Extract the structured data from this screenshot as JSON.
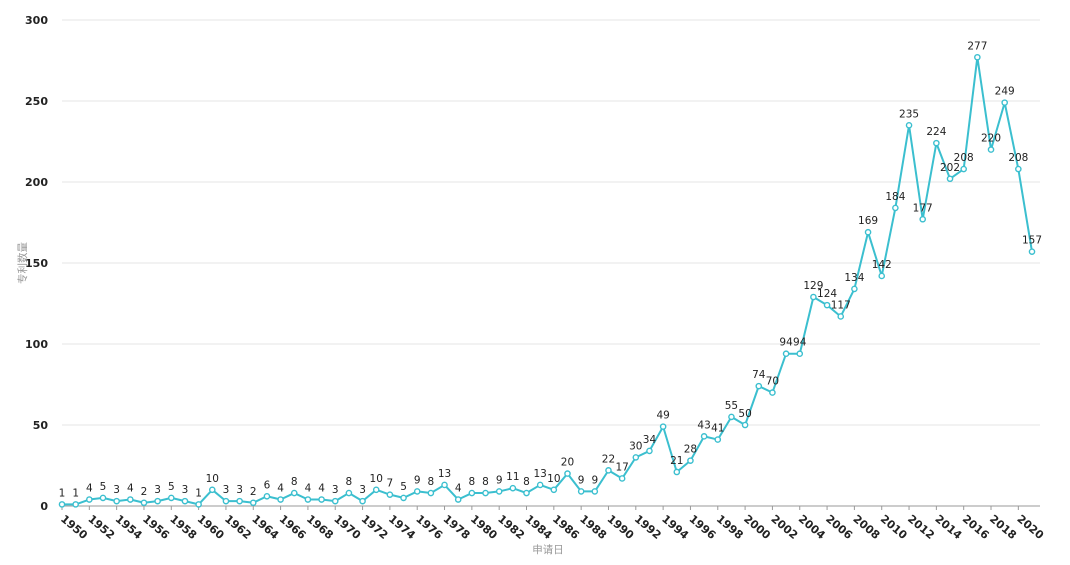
{
  "chart_data": {
    "type": "line",
    "title": "",
    "xlabel": "申请日",
    "ylabel": "专利数量",
    "ylim": [
      0,
      300
    ],
    "yticks": [
      0,
      50,
      100,
      150,
      200,
      250,
      300
    ],
    "grid": true,
    "x": [
      1950,
      1951,
      1952,
      1953,
      1954,
      1955,
      1956,
      1957,
      1958,
      1959,
      1960,
      1961,
      1962,
      1963,
      1964,
      1965,
      1966,
      1967,
      1968,
      1969,
      1970,
      1971,
      1972,
      1973,
      1974,
      1975,
      1976,
      1977,
      1978,
      1979,
      1980,
      1981,
      1982,
      1983,
      1984,
      1985,
      1986,
      1987,
      1988,
      1989,
      1990,
      1991,
      1992,
      1993,
      1994,
      1995,
      1996,
      1997,
      1998,
      1999,
      2000,
      2001,
      2002,
      2003,
      2004,
      2005,
      2006,
      2007,
      2008,
      2009,
      2010,
      2011,
      2012,
      2013,
      2014,
      2015,
      2016,
      2017,
      2018,
      2019,
      2020,
      2021
    ],
    "xtick_labels": [
      "1950",
      "1952",
      "1954",
      "1956",
      "1958",
      "1960",
      "1962",
      "1964",
      "1966",
      "1968",
      "1970",
      "1972",
      "1974",
      "1976",
      "1978",
      "1980",
      "1982",
      "1984",
      "1986",
      "1988",
      "1990",
      "1992",
      "1994",
      "1996",
      "1998",
      "2000",
      "2002",
      "2004",
      "2006",
      "2008",
      "2010",
      "2012",
      "2014",
      "2016",
      "2018",
      "2020"
    ],
    "series": [
      {
        "values": [
          1,
          1,
          4,
          5,
          3,
          4,
          2,
          3,
          5,
          3,
          1,
          10,
          3,
          3,
          2,
          6,
          4,
          8,
          4,
          4,
          3,
          8,
          3,
          10,
          7,
          5,
          9,
          8,
          13,
          4,
          8,
          8,
          9,
          11,
          8,
          13,
          10,
          20,
          9,
          9,
          22,
          17,
          30,
          34,
          49,
          21,
          28,
          43,
          41,
          55,
          50,
          74,
          70,
          94,
          94,
          129,
          124,
          117,
          134,
          169,
          142,
          184,
          235,
          177,
          224,
          202,
          208,
          277,
          220,
          249,
          208,
          157
        ]
      }
    ],
    "colors": {
      "line": "#3bbfcf",
      "grid": "#e6e6e6",
      "axis": "#999999"
    }
  }
}
